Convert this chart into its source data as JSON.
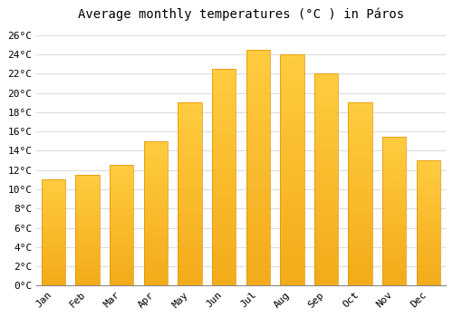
{
  "title": "Average monthly temperatures (°C ) in Páros",
  "months": [
    "Jan",
    "Feb",
    "Mar",
    "Apr",
    "May",
    "Jun",
    "Jul",
    "Aug",
    "Sep",
    "Oct",
    "Nov",
    "Dec"
  ],
  "temperatures": [
    11,
    11.5,
    12.5,
    15,
    19,
    22.5,
    24.5,
    24,
    22,
    19,
    15.5,
    13
  ],
  "bar_color_top": "#FFC040",
  "bar_color_bottom": "#F5A800",
  "bar_edge_color": "#E09000",
  "background_color": "#FFFFFF",
  "plot_bg_color": "#FFFFFF",
  "grid_color": "#DDDDDD",
  "ylim": [
    0,
    27
  ],
  "yticks": [
    0,
    2,
    4,
    6,
    8,
    10,
    12,
    14,
    16,
    18,
    20,
    22,
    24,
    26
  ],
  "ytick_labels": [
    "0°C",
    "2°C",
    "4°C",
    "6°C",
    "8°C",
    "10°C",
    "12°C",
    "14°C",
    "16°C",
    "18°C",
    "20°C",
    "22°C",
    "24°C",
    "26°C"
  ],
  "title_fontsize": 10,
  "tick_fontsize": 8,
  "font_family": "monospace"
}
